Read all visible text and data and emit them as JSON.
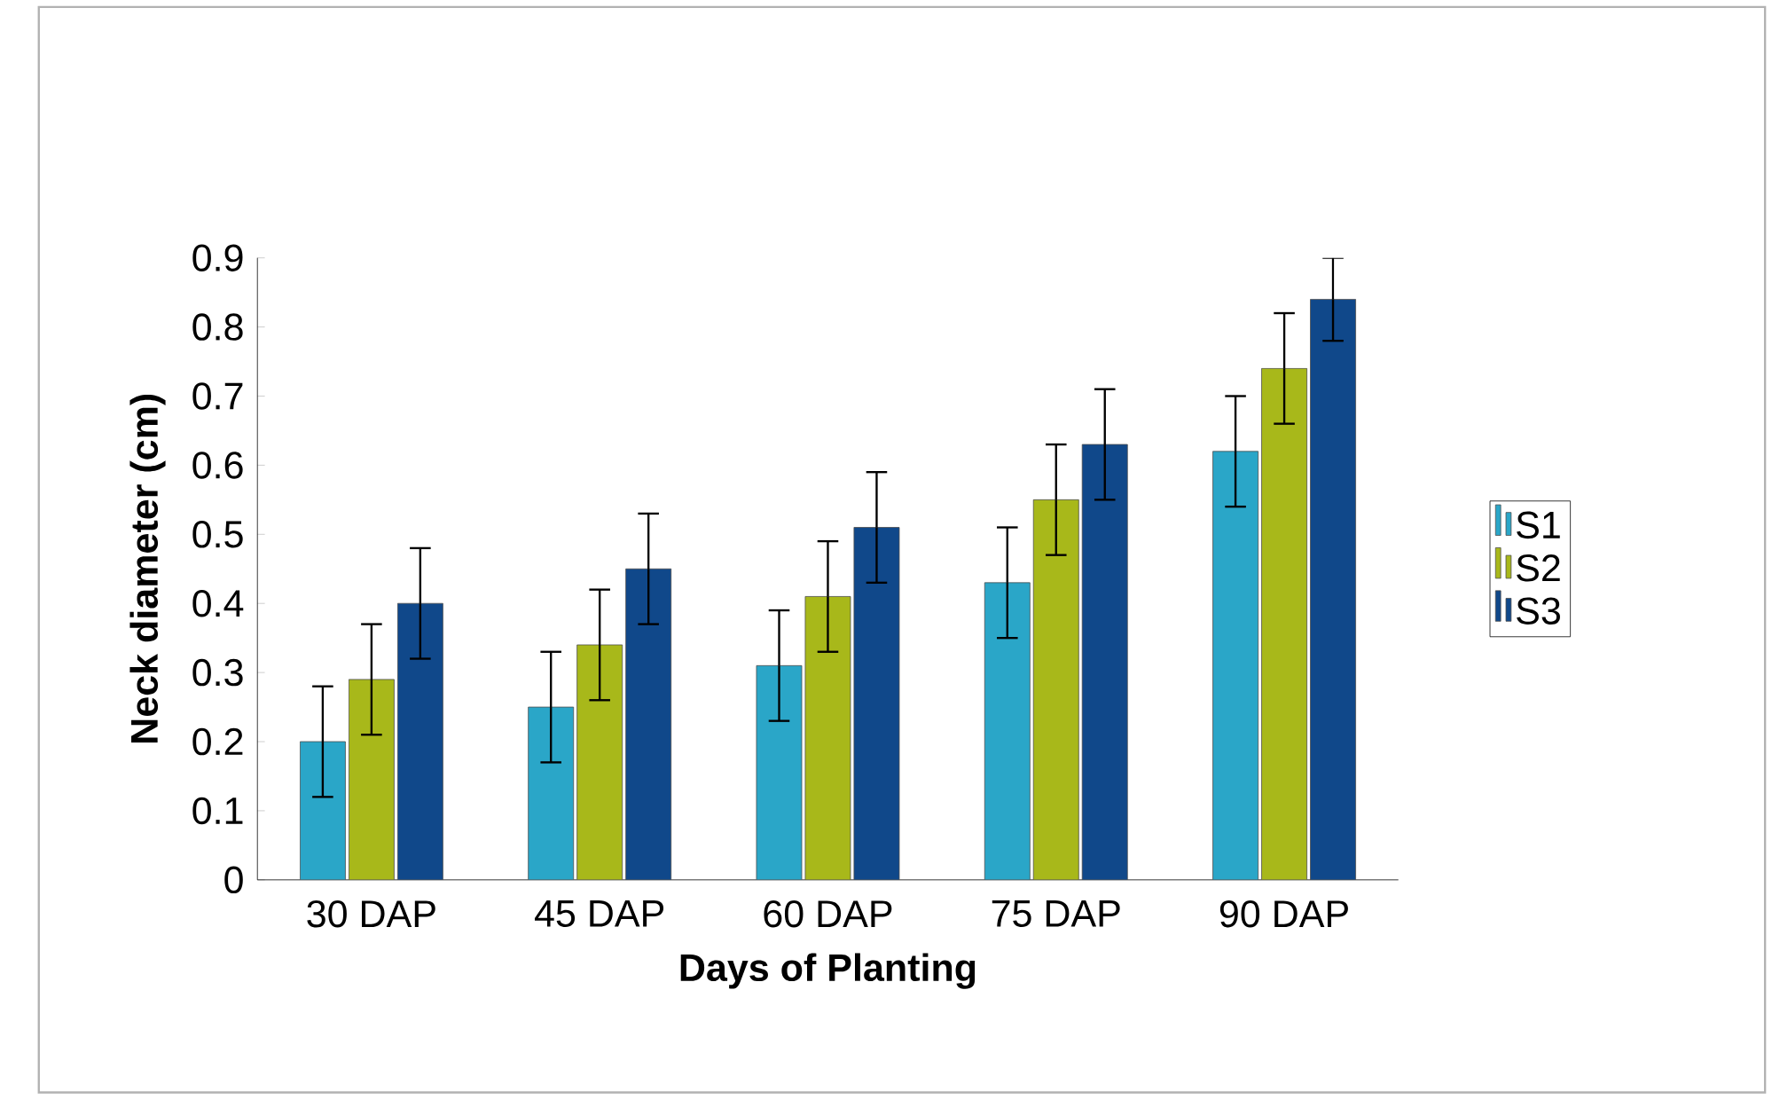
{
  "chart_data": {
    "type": "bar",
    "xlabel": "Days of Planting",
    "ylabel": "Neck diameter (cm)",
    "categories": [
      "30 DAP",
      "45 DAP",
      "60 DAP",
      "75 DAP",
      "90 DAP"
    ],
    "series": [
      {
        "name": "S1",
        "color": "#2aa6c8",
        "values": [
          0.2,
          0.25,
          0.31,
          0.43,
          0.62
        ],
        "errors": [
          0.08,
          0.08,
          0.08,
          0.08,
          0.08
        ]
      },
      {
        "name": "S2",
        "color": "#a8b81a",
        "values": [
          0.29,
          0.34,
          0.41,
          0.55,
          0.74
        ],
        "errors": [
          0.08,
          0.08,
          0.08,
          0.08,
          0.08
        ]
      },
      {
        "name": "S3",
        "color": "#10488a",
        "values": [
          0.4,
          0.45,
          0.51,
          0.63,
          0.84
        ],
        "errors": [
          0.08,
          0.08,
          0.08,
          0.08,
          0.06
        ]
      }
    ],
    "ylim": [
      0,
      0.9
    ],
    "yticks": [
      0,
      0.1,
      0.2,
      0.3,
      0.4,
      0.5,
      0.6,
      0.7,
      0.8,
      0.9
    ],
    "grid": false,
    "legend": "right"
  }
}
